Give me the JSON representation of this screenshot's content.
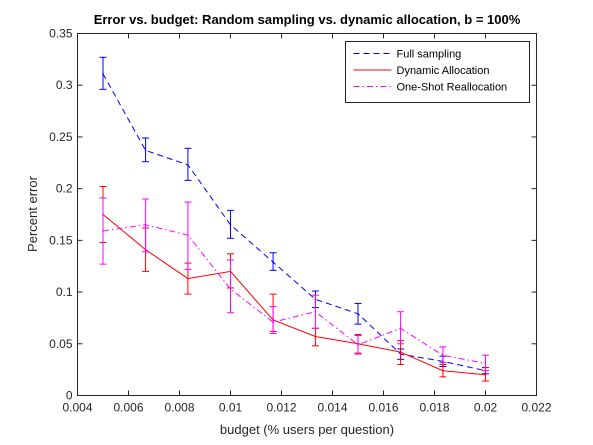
{
  "chart_data": {
    "type": "line",
    "title": "Error vs. budget: Random sampling vs. dynamic allocation, b = 100%",
    "xlabel": "budget (% users per question)",
    "ylabel": "Percent error",
    "xlim": [
      0.004,
      0.022
    ],
    "ylim": [
      0,
      0.35
    ],
    "xticks": [
      0.004,
      0.006,
      0.008,
      0.01,
      0.012,
      0.014,
      0.016,
      0.018,
      0.02,
      0.022
    ],
    "xtick_labels": [
      "0.004",
      "0.006",
      "0.008",
      "0.01",
      "0.012",
      "0.014",
      "0.016",
      "0.018",
      "0.02",
      "0.022"
    ],
    "yticks": [
      0,
      0.05,
      0.1,
      0.15,
      0.2,
      0.25,
      0.3,
      0.35
    ],
    "ytick_labels": [
      "0",
      "0.05",
      "0.1",
      "0.15",
      "0.2",
      "0.25",
      "0.3",
      "0.35"
    ],
    "grid": false,
    "legend_position": "top-right",
    "x": [
      0.005,
      0.00667,
      0.00833,
      0.01,
      0.01167,
      0.01333,
      0.015,
      0.01667,
      0.01833,
      0.02
    ],
    "series": [
      {
        "name": "Full sampling",
        "color": "#0000ff",
        "line_style": "dashed",
        "values": [
          0.311,
          0.237,
          0.223,
          0.165,
          0.129,
          0.093,
          0.079,
          0.04,
          0.033,
          0.024
        ],
        "error_low": [
          0.296,
          0.226,
          0.208,
          0.152,
          0.121,
          0.085,
          0.069,
          0.035,
          0.028,
          0.021
        ],
        "error_high": [
          0.327,
          0.249,
          0.239,
          0.179,
          0.138,
          0.101,
          0.089,
          0.045,
          0.038,
          0.027
        ]
      },
      {
        "name": "Dynamic Allocation",
        "color": "#ff0000",
        "line_style": "solid",
        "values": [
          0.175,
          0.141,
          0.113,
          0.12,
          0.073,
          0.057,
          0.05,
          0.042,
          0.024,
          0.02
        ],
        "error_low": [
          0.148,
          0.12,
          0.098,
          0.104,
          0.062,
          0.048,
          0.041,
          0.03,
          0.018,
          0.014
        ],
        "error_high": [
          0.202,
          0.162,
          0.128,
          0.137,
          0.098,
          0.065,
          0.059,
          0.053,
          0.03,
          0.027
        ]
      },
      {
        "name": "One-Shot Reallocation",
        "color": "#ff00ff",
        "line_style": "dashdot",
        "values": [
          0.159,
          0.165,
          0.155,
          0.103,
          0.071,
          0.081,
          0.049,
          0.065,
          0.039,
          0.031
        ],
        "error_low": [
          0.127,
          0.139,
          0.122,
          0.08,
          0.06,
          0.065,
          0.04,
          0.05,
          0.032,
          0.024
        ],
        "error_high": [
          0.191,
          0.19,
          0.187,
          0.131,
          0.086,
          0.097,
          0.058,
          0.081,
          0.047,
          0.039
        ]
      }
    ]
  }
}
